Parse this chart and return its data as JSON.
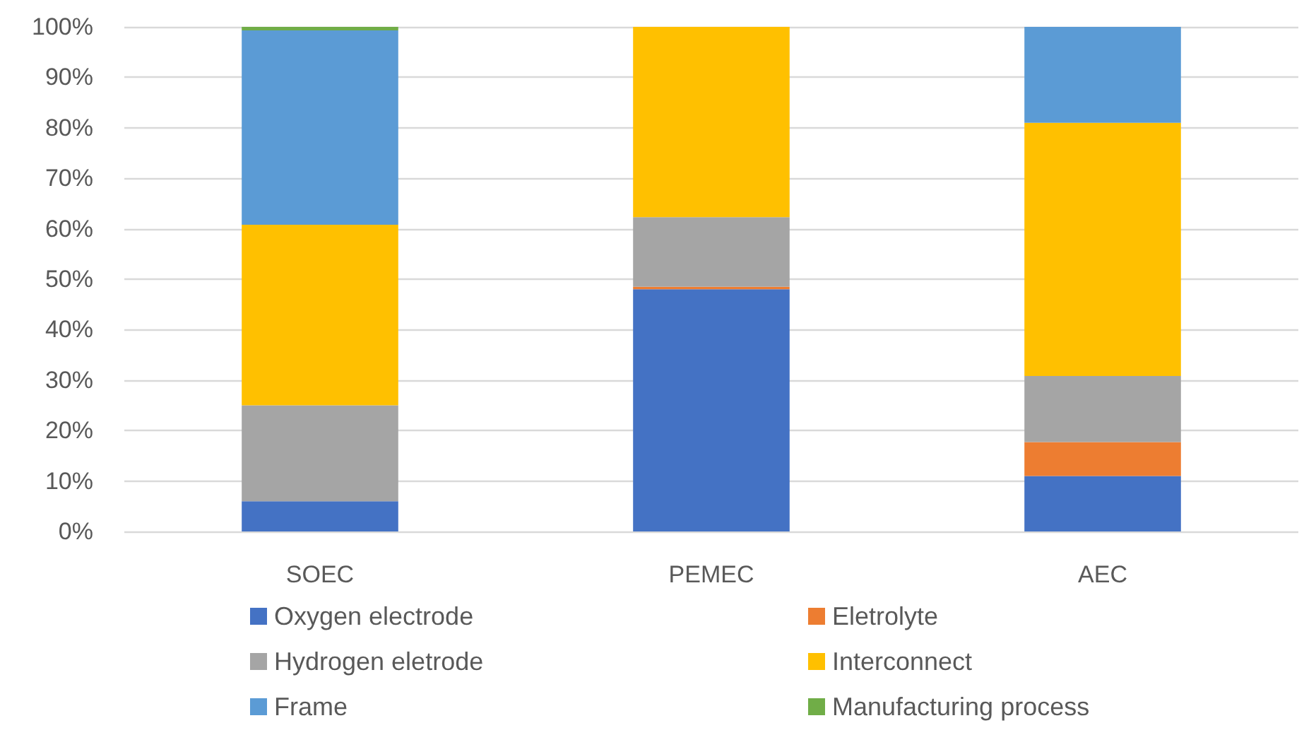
{
  "chart_data": {
    "type": "bar",
    "stacked": true,
    "categories": [
      "SOEC",
      "PEMEC",
      "AEC"
    ],
    "series": [
      {
        "name": "Oxygen electrode",
        "color": "#4472c4",
        "values": [
          6,
          48,
          11
        ]
      },
      {
        "name": "Eletrolyte",
        "color": "#ed7d31",
        "values": [
          0,
          0.5,
          6.7
        ]
      },
      {
        "name": "Hydrogen eletrode",
        "color": "#a5a5a5",
        "values": [
          19,
          13.8,
          13.1
        ]
      },
      {
        "name": "Interconnect",
        "color": "#ffc000",
        "values": [
          35.8,
          37.7,
          50.2
        ]
      },
      {
        "name": "Frame",
        "color": "#5b9bd5",
        "values": [
          38.5,
          0,
          19
        ]
      },
      {
        "name": "Manufacturing process",
        "color": "#70ad47",
        "values": [
          0.7,
          0,
          0
        ]
      }
    ],
    "ylim": [
      0,
      100
    ],
    "yticks": [
      {
        "value": 0,
        "label": "0%"
      },
      {
        "value": 10,
        "label": "10%"
      },
      {
        "value": 20,
        "label": "20%"
      },
      {
        "value": 30,
        "label": "30%"
      },
      {
        "value": 40,
        "label": "40%"
      },
      {
        "value": 50,
        "label": "50%"
      },
      {
        "value": 60,
        "label": "60%"
      },
      {
        "value": 70,
        "label": "70%"
      },
      {
        "value": 80,
        "label": "80%"
      },
      {
        "value": 90,
        "label": "90%"
      },
      {
        "value": 100,
        "label": "100%"
      }
    ],
    "grid": true,
    "legend": "bottom"
  }
}
